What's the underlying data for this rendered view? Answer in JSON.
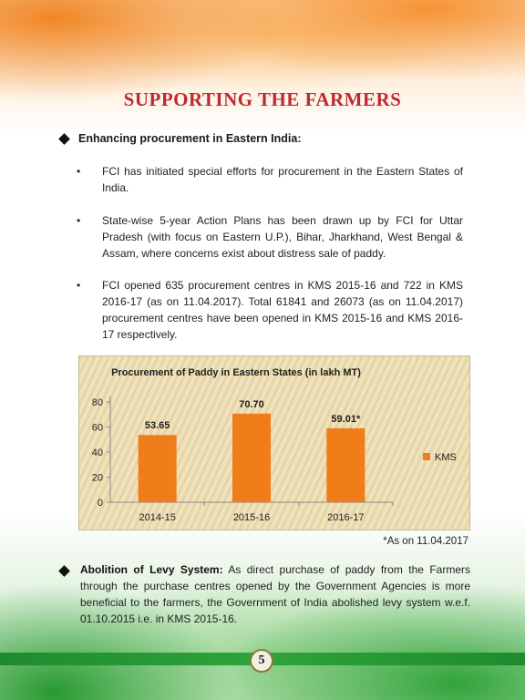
{
  "title": "SUPPORTING THE FARMERS",
  "section1": {
    "heading": "Enhancing procurement in Eastern India:",
    "bullets": [
      "FCI has initiated special efforts for procurement in the Eastern States of India.",
      "State-wise 5-year Action Plans has been drawn up by FCI for Uttar Pradesh (with focus on Eastern U.P.), Bihar, Jharkhand, West Bengal & Assam, where concerns exist about distress sale of paddy.",
      "FCI opened 635 procurement centres in KMS 2015-16 and 722 in KMS 2016-17 (as on 11.04.2017). Total 61841 and 26073 (as on 11.04.2017) procurement centres have been opened in KMS 2015-16 and KMS 2016-17 respectively."
    ],
    "bullet_symbol": "•"
  },
  "chart_data": {
    "type": "bar",
    "title": "Procurement of Paddy in Eastern States (in lakh MT)",
    "categories": [
      "2014-15",
      "2015-16",
      "2016-17"
    ],
    "series": [
      {
        "name": "KMS",
        "values": [
          53.65,
          70.7,
          59.01
        ],
        "labels": [
          "53.65",
          "70.70",
          "59.01*"
        ],
        "color": "#f07d1a"
      }
    ],
    "ylim": [
      0,
      80
    ],
    "yticks": [
      0,
      20,
      40,
      60,
      80
    ],
    "legend": "right",
    "grid": false
  },
  "chart_note": "*As on 11.04.2017",
  "section2": {
    "heading": "Abolition of Levy System:",
    "body": " As direct purchase of paddy from the Farmers through the purchase centres opened by the Government Agencies is more beneficial to the farmers, the Government of India abolished levy system w.e.f. 01.10.2015 i.e. in KMS 2015-16."
  },
  "page_number": "5"
}
